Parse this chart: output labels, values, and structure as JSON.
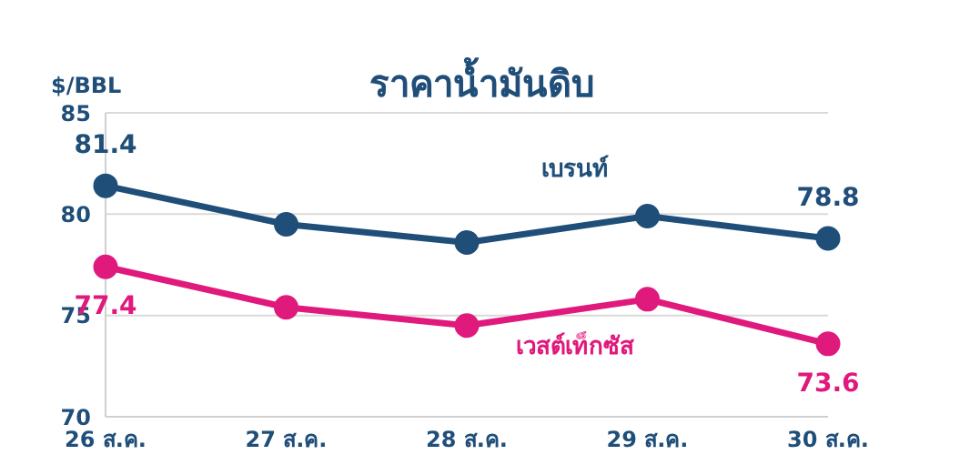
{
  "chart_data": {
    "type": "line",
    "title": "ราคาน้ำมันดิบ",
    "ylabel": "$/BBL",
    "categories": [
      "26 ส.ค.",
      "27 ส.ค.",
      "28 ส.ค.",
      "29 ส.ค.",
      "30 ส.ค."
    ],
    "series": [
      {
        "name": "เบรนท์",
        "color": "#1f4e79",
        "values": [
          81.4,
          79.5,
          78.6,
          79.9,
          78.8
        ],
        "value_labels": [
          "81.4",
          null,
          null,
          null,
          "78.8"
        ]
      },
      {
        "name": "เวสต์เท็กซัส",
        "color": "#e0197d",
        "values": [
          77.4,
          75.4,
          74.5,
          75.8,
          73.6
        ],
        "value_labels": [
          "77.4",
          null,
          null,
          null,
          "73.6"
        ]
      }
    ],
    "ylim": [
      70,
      85
    ],
    "yticks": [
      70,
      75,
      80,
      85
    ],
    "grid": "y",
    "marker": "circle",
    "line_style": "solid"
  }
}
